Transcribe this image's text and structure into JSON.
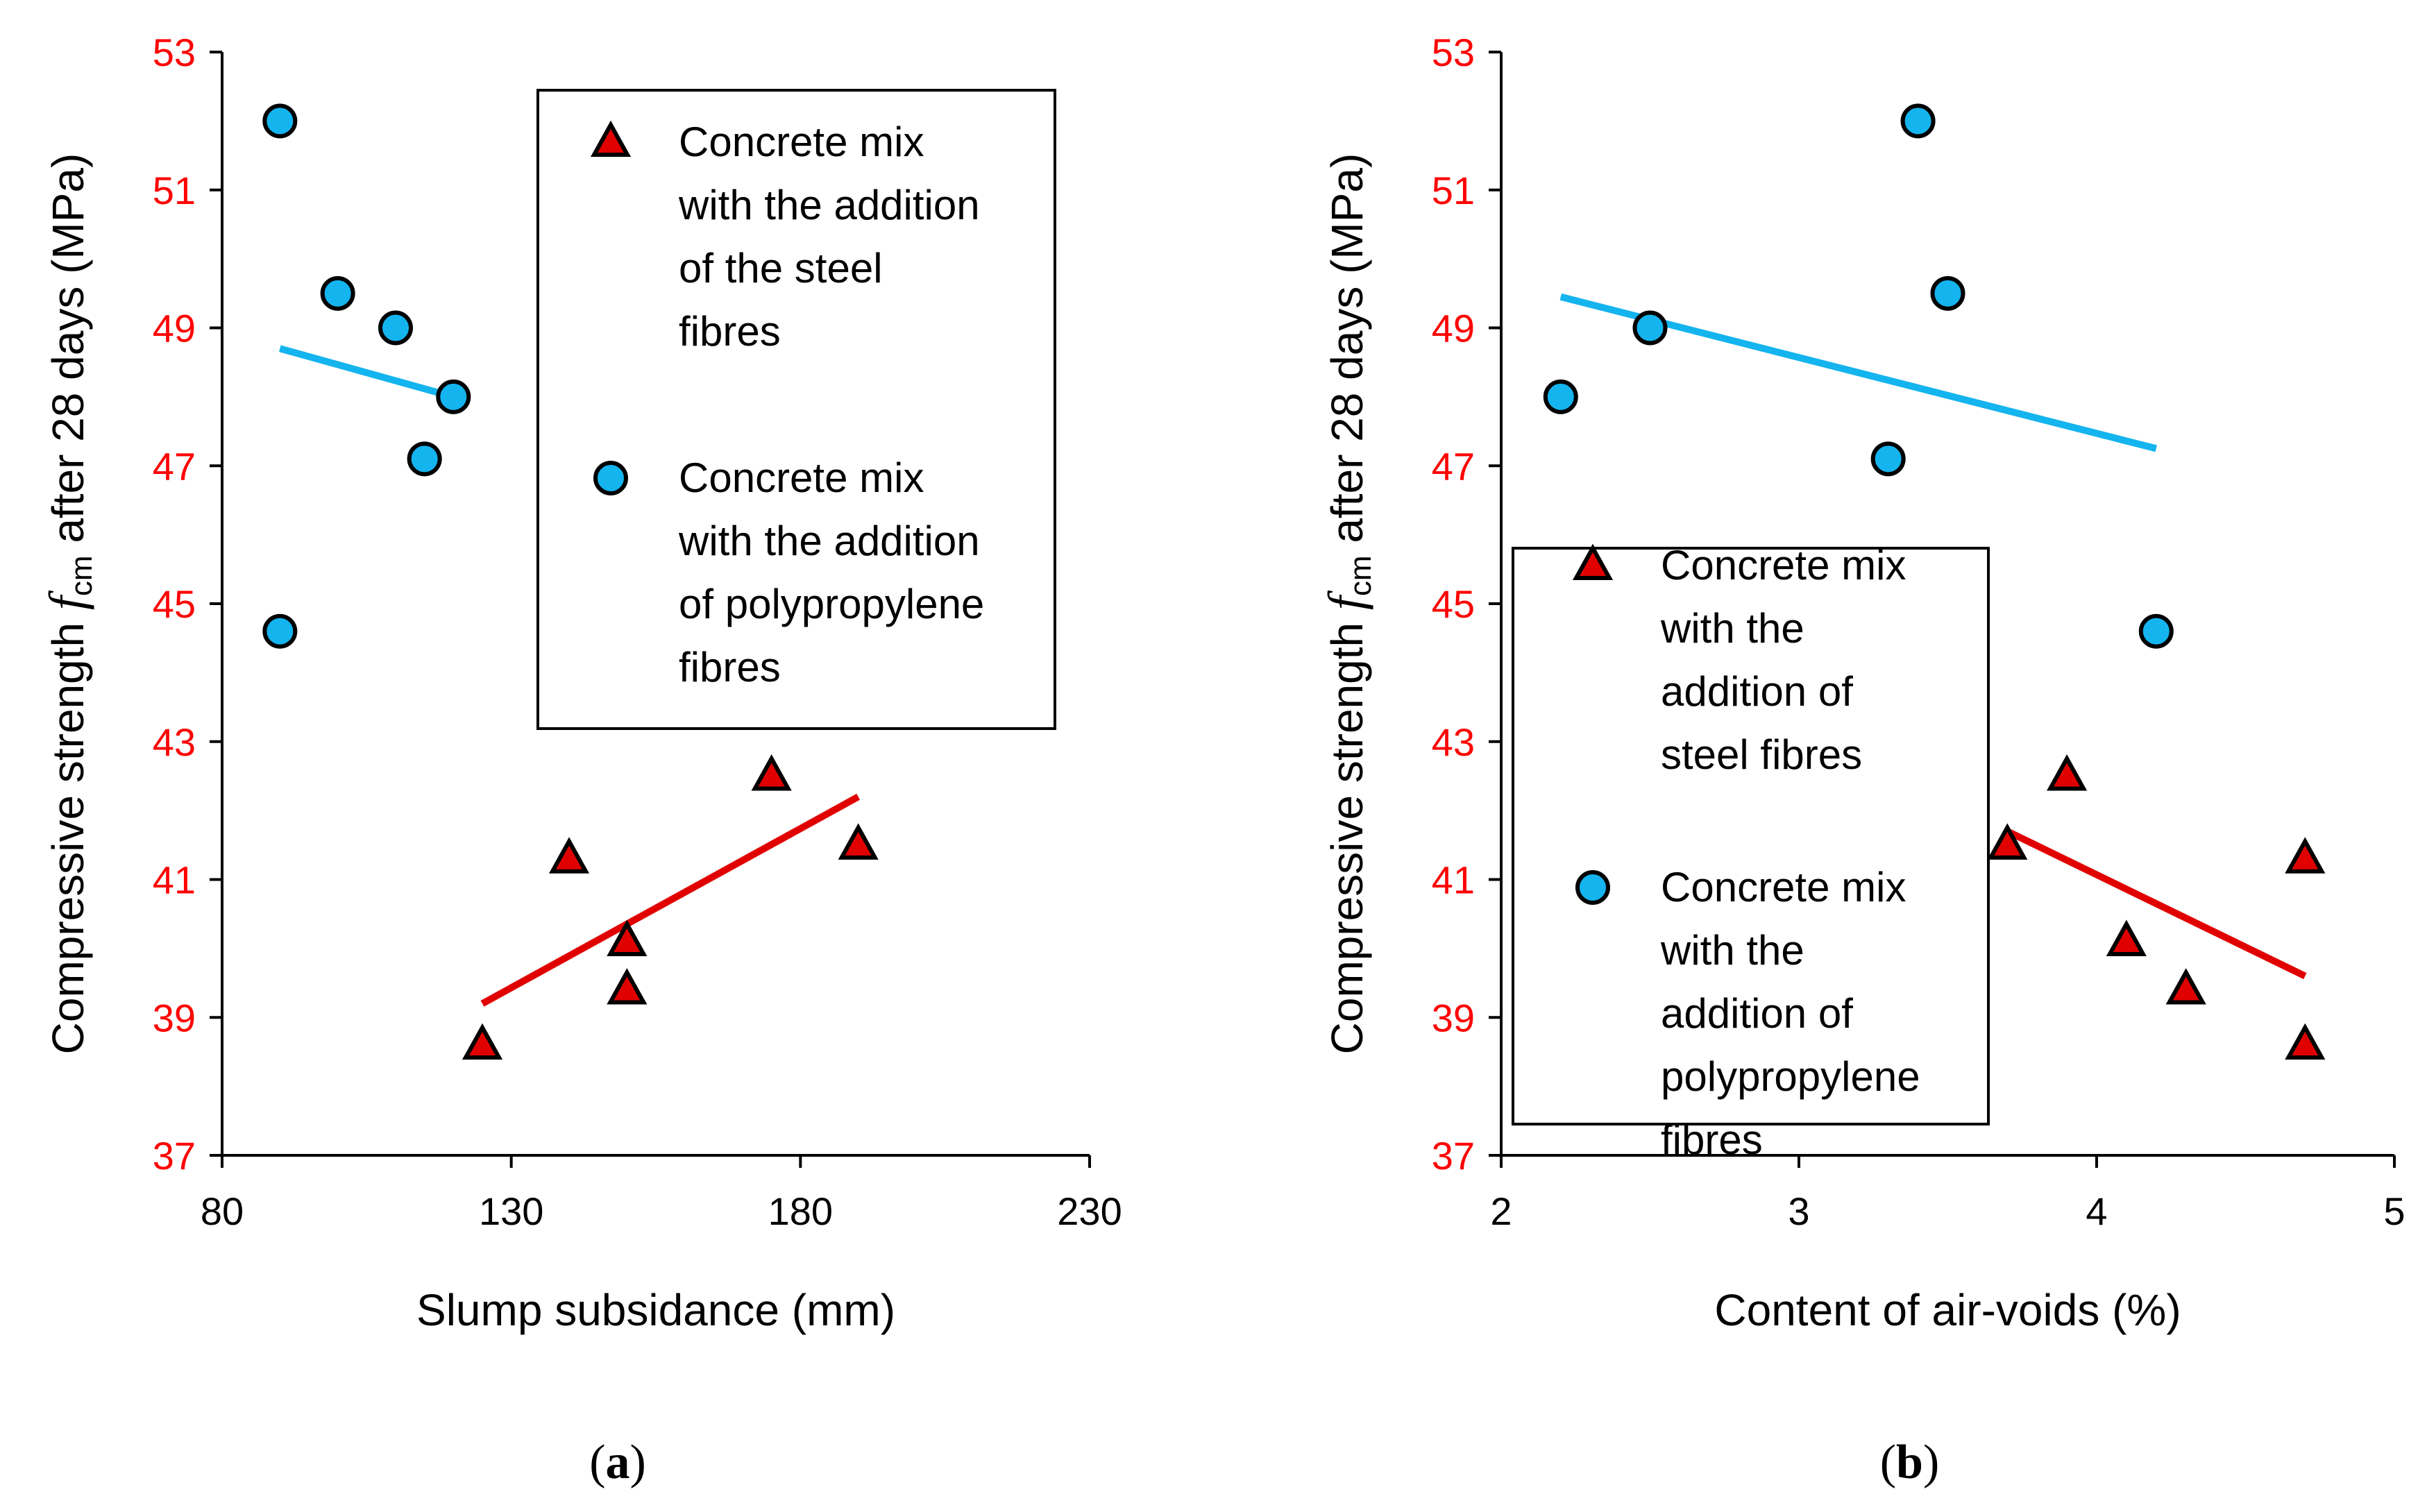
{
  "chart_data": [
    {
      "type": "scatter",
      "panel_label": "(a)",
      "panel_letter": "a",
      "xlabel": "Slump subsidance (mm)",
      "ylabel": {
        "prefix": "Compressive strength ",
        "symbol": "f",
        "subscript": "cm",
        "suffix": " after 28 days (MPa)"
      },
      "xlim": [
        80,
        230
      ],
      "ylim": [
        37,
        53
      ],
      "xticks": [
        "80",
        "130",
        "180",
        "230"
      ],
      "yticks": [
        "37",
        "39",
        "41",
        "43",
        "45",
        "47",
        "49",
        "51",
        "53"
      ],
      "legend_placement": "upper-right",
      "series": [
        {
          "name": [
            "Concrete mix",
            "with the addition",
            "of the steel",
            "fibres"
          ],
          "marker": "triangle",
          "color": "#e00000",
          "points": [
            [
              125,
              38.6
            ],
            [
              140,
              41.3
            ],
            [
              150,
              40.1
            ],
            [
              150,
              39.4
            ],
            [
              175,
              42.5
            ],
            [
              190,
              41.5
            ]
          ],
          "trend": [
            [
              125,
              39.2
            ],
            [
              190,
              42.2
            ]
          ]
        },
        {
          "name": [
            "Concrete mix",
            "with the addition",
            "of polypropylene",
            "fibres"
          ],
          "marker": "circle",
          "color": "#14b4ee",
          "points": [
            [
              90,
              52.0
            ],
            [
              90,
              44.6
            ],
            [
              100,
              49.5
            ],
            [
              110,
              49.0
            ],
            [
              115,
              47.1
            ],
            [
              120,
              48.0
            ]
          ],
          "trend": [
            [
              90,
              48.7
            ],
            [
              120,
              48.0
            ]
          ]
        }
      ]
    },
    {
      "type": "scatter",
      "panel_label": "(b)",
      "panel_letter": "b",
      "xlabel": "Content of air-voids (%)",
      "ylabel": {
        "prefix": "Compressive strength ",
        "symbol": "f",
        "subscript": "cm",
        "suffix": " after 28 days (MPa)"
      },
      "xlim": [
        2,
        5
      ],
      "ylim": [
        37,
        53
      ],
      "xticks": [
        "2",
        "3",
        "4",
        "5"
      ],
      "yticks": [
        "37",
        "39",
        "41",
        "43",
        "45",
        "47",
        "49",
        "51",
        "53"
      ],
      "legend_placement": "lower-left",
      "series": [
        {
          "name": [
            "Concrete mix",
            "with the",
            "addition of",
            "steel fibres"
          ],
          "marker": "triangle",
          "color": "#e00000",
          "points": [
            [
              3.7,
              41.5
            ],
            [
              3.9,
              42.5
            ],
            [
              4.1,
              40.1
            ],
            [
              4.3,
              39.4
            ],
            [
              4.7,
              41.3
            ],
            [
              4.7,
              38.6
            ]
          ],
          "trend": [
            [
              3.7,
              41.7
            ],
            [
              4.7,
              39.6
            ]
          ]
        },
        {
          "name": [
            "Concrete mix",
            "with the",
            "addition of",
            "polypropylene",
            "fibres"
          ],
          "marker": "circle",
          "color": "#14b4ee",
          "points": [
            [
              2.2,
              48.0
            ],
            [
              2.5,
              49.0
            ],
            [
              3.3,
              47.1
            ],
            [
              3.4,
              52.0
            ],
            [
              3.5,
              49.5
            ],
            [
              4.2,
              44.6
            ]
          ],
          "trend": [
            [
              2.2,
              49.45
            ],
            [
              4.2,
              47.25
            ]
          ]
        }
      ]
    }
  ]
}
